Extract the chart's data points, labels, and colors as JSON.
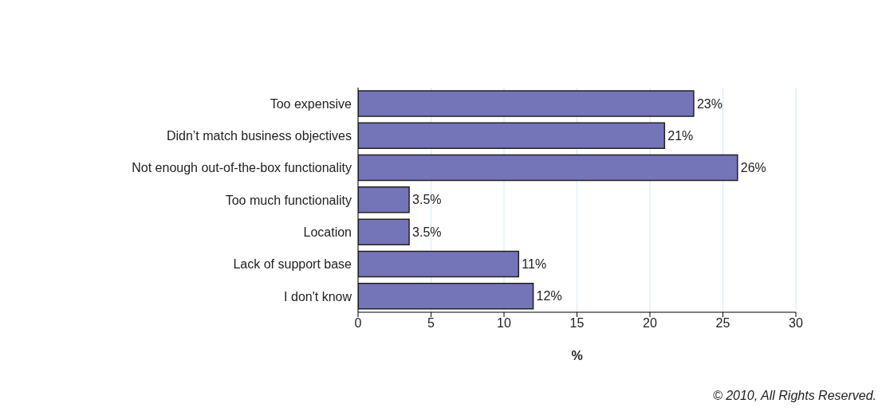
{
  "chart_data": {
    "type": "bar",
    "orientation": "horizontal",
    "xlabel": "%",
    "categories": [
      "Too expensive",
      "Didn’t match business objectives",
      "Not enough out-of-the-box functionality",
      "Too much functionality",
      "Location",
      "Lack of support base",
      "I don't know"
    ],
    "values": [
      23,
      21,
      26,
      3.5,
      3.5,
      11,
      12
    ],
    "value_labels": [
      "23%",
      "21%",
      "26%",
      "3.5%",
      "3.5%",
      "11%",
      "12%"
    ],
    "color": "#7474b8",
    "xlim": [
      0,
      30
    ],
    "xticks": [
      0,
      5,
      10,
      15,
      20,
      25,
      30
    ],
    "grid": "x",
    "annotations": [
      "© 2010, All Rights Reserved."
    ]
  }
}
